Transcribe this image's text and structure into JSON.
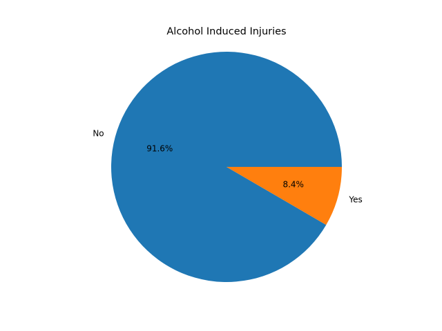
{
  "chart_data": {
    "type": "pie",
    "title": "Alcohol Induced Injuries",
    "slices": [
      {
        "label": "No",
        "value": 91.6,
        "pct_label": "91.6%",
        "color": "#1f77b4"
      },
      {
        "label": "Yes",
        "value": 8.4,
        "pct_label": "8.4%",
        "color": "#ff7f0e"
      }
    ],
    "start_angle_deg": 0,
    "direction": "counterclockwise",
    "legend": "none"
  }
}
